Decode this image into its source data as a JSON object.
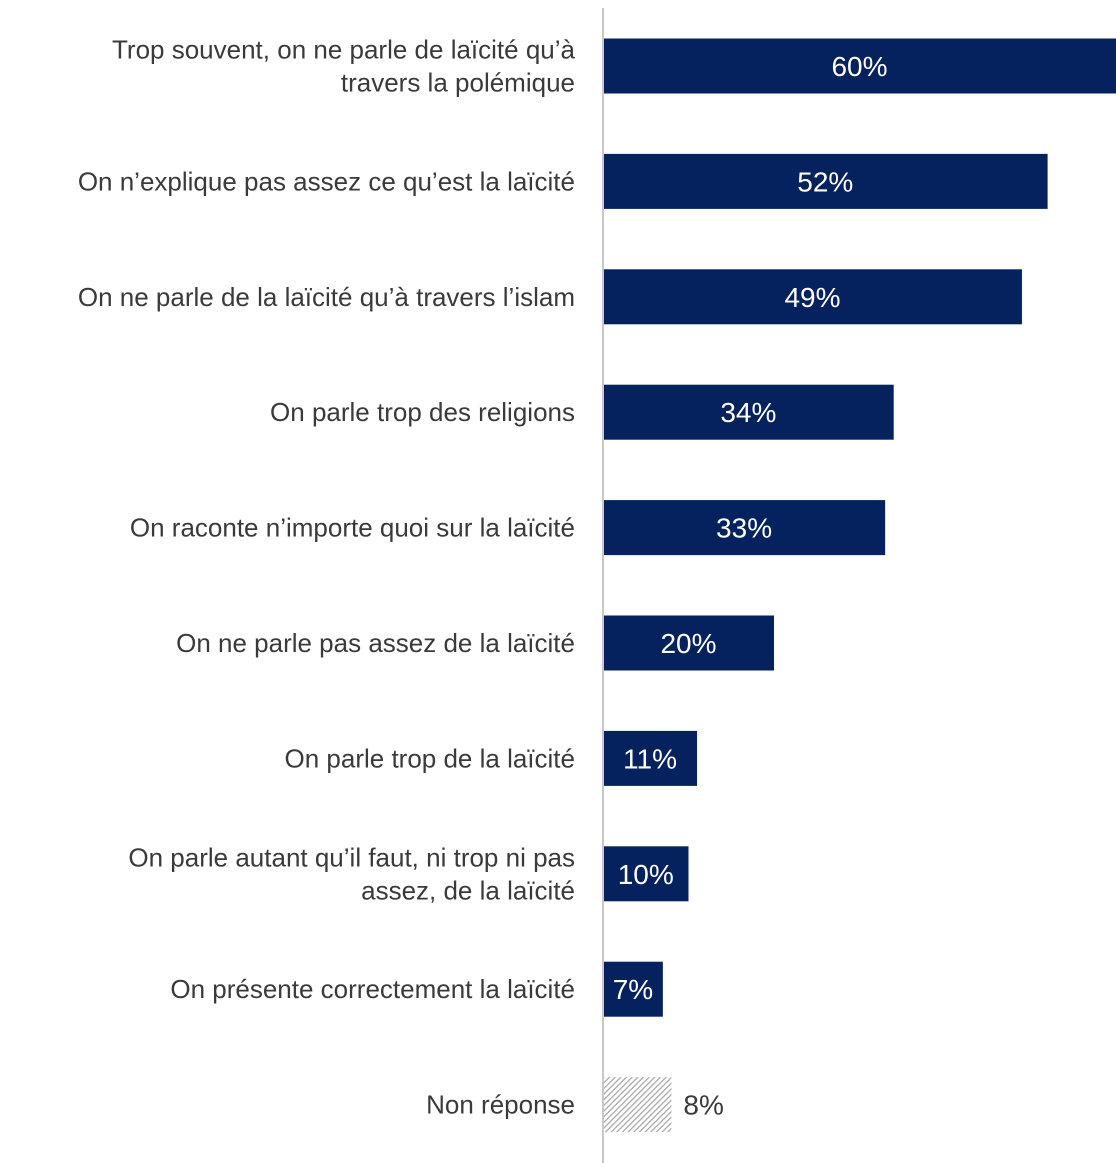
{
  "chart_data": {
    "type": "bar",
    "orientation": "horizontal",
    "categories": [
      "Trop souvent, on ne parle de laïcité qu’à travers la polémique",
      "On n’explique pas assez ce qu’est la laïcité",
      "On ne parle de la laïcité qu’à travers l’islam",
      "On parle trop des religions",
      "On raconte n’importe quoi sur la laïcité",
      "On ne parle pas assez de la laïcité",
      "On parle trop de la laïcité",
      "On parle autant qu’il faut, ni trop ni pas assez, de la laïcité",
      "On présente correctement la laïcité",
      "Non réponse"
    ],
    "category_lines": [
      [
        "Trop souvent, on ne parle de laïcité qu’à",
        "travers la polémique"
      ],
      [
        "On n’explique pas assez ce qu’est la laïcité"
      ],
      [
        "On ne parle de la laïcité qu’à travers l’islam"
      ],
      [
        "On parle trop des religions"
      ],
      [
        "On raconte n’importe quoi sur la laïcité"
      ],
      [
        "On ne parle pas assez de la laïcité"
      ],
      [
        "On parle trop de la laïcité"
      ],
      [
        "On parle autant qu’il faut, ni trop ni pas",
        "assez, de la laïcité"
      ],
      [
        "On présente correctement la laïcité"
      ],
      [
        "Non réponse"
      ]
    ],
    "values": [
      60,
      52,
      49,
      34,
      33,
      20,
      11,
      10,
      7,
      8
    ],
    "value_labels": [
      "60%",
      "52%",
      "49%",
      "34%",
      "33%",
      "20%",
      "11%",
      "10%",
      "7%",
      "8%"
    ],
    "styles": [
      "solid",
      "solid",
      "solid",
      "solid",
      "solid",
      "solid",
      "solid",
      "solid",
      "solid",
      "hatched"
    ],
    "unit": "%",
    "xlim": [
      0,
      60
    ],
    "grid": false,
    "legend": "none",
    "colors": {
      "bar": "#06225e",
      "hatch": "#a9a9a9",
      "axis": "#c8c8c8",
      "value_text_inside": "#ffffff",
      "value_text_outside": "#3a3a3a",
      "category_text": "#3a3a3a"
    }
  }
}
